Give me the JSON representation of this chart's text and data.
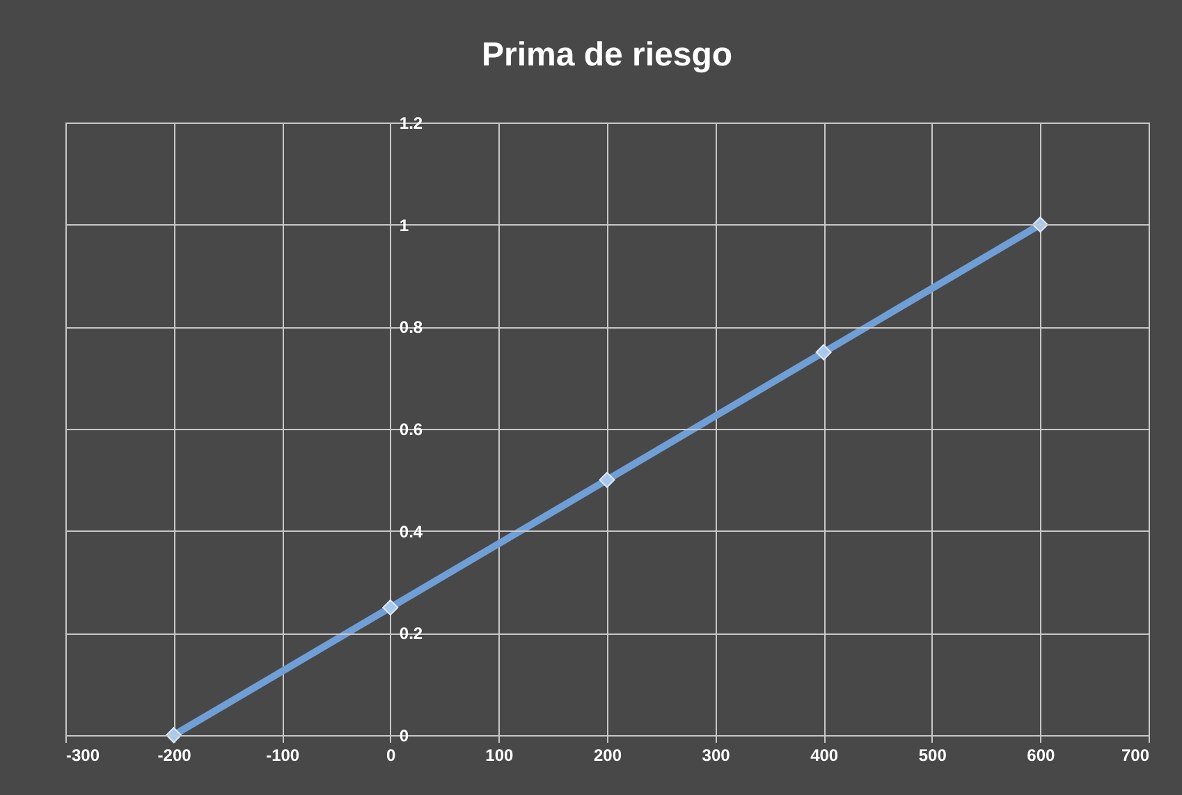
{
  "chart_data": {
    "type": "line",
    "title": "Prima de riesgo",
    "x": [
      -200,
      0,
      200,
      400,
      600
    ],
    "series": [
      {
        "color": "#6f9fd6",
        "values": [
          0,
          0.25,
          0.5,
          0.75,
          1
        ]
      }
    ],
    "xlim": [
      -300,
      700
    ],
    "xticks": [
      -300,
      -200,
      -100,
      0,
      100,
      200,
      300,
      400,
      500,
      600,
      700
    ],
    "ylim": [
      0,
      1.2
    ],
    "yticks": [
      0,
      0.2,
      0.4,
      0.6,
      0.8,
      1,
      1.2
    ],
    "grid": true,
    "marker": "diamond",
    "line_style": "solid"
  }
}
